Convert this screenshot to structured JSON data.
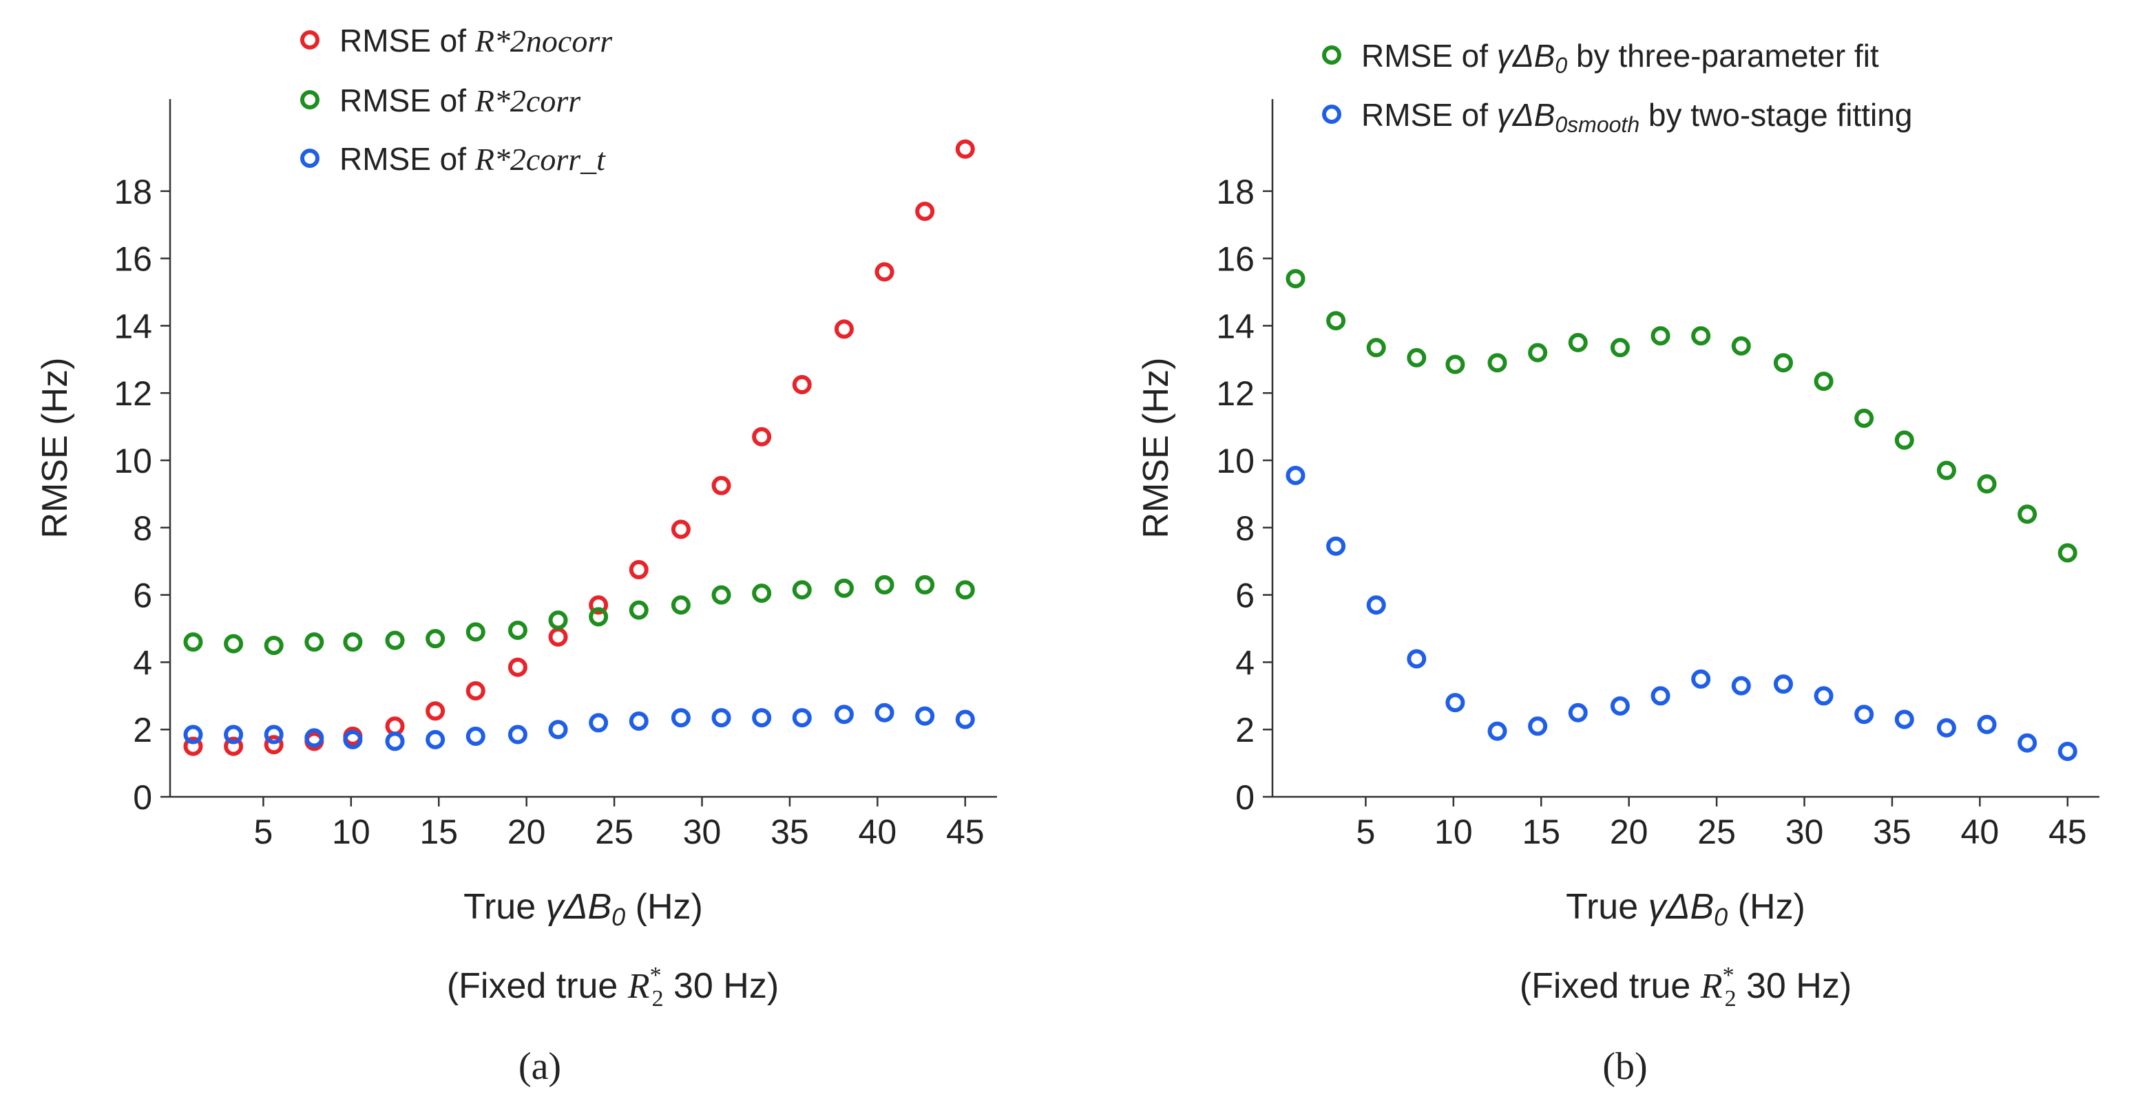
{
  "chart_data": [
    {
      "type": "scatter",
      "panel_label": "a",
      "panel_caption": "(a)",
      "x": [
        1,
        3.3,
        5.6,
        7.9,
        10.1,
        12.5,
        14.8,
        17.1,
        19.5,
        21.8,
        24.1,
        26.4,
        28.8,
        31.1,
        33.4,
        35.7,
        38.1,
        40.4,
        42.7,
        45
      ],
      "series": [
        {
          "name": "RMSE of R*2nocorr",
          "label_prefix": "RMSE of ",
          "label_symbol": "R*2nocorr",
          "color": "#e8242b",
          "values": [
            1.5,
            1.5,
            1.55,
            1.65,
            1.8,
            2.1,
            2.55,
            3.15,
            3.85,
            4.75,
            5.7,
            6.75,
            7.95,
            9.25,
            10.7,
            12.25,
            13.9,
            15.6,
            17.4,
            19.25
          ]
        },
        {
          "name": "RMSE of R*2corr",
          "label_prefix": "RMSE of ",
          "label_symbol": "R*2corr",
          "color": "#1e8f1e",
          "values": [
            4.6,
            4.55,
            4.5,
            4.6,
            4.6,
            4.65,
            4.7,
            4.9,
            4.95,
            5.25,
            5.35,
            5.55,
            5.7,
            6.0,
            6.05,
            6.15,
            6.2,
            6.3,
            6.3,
            6.15
          ]
        },
        {
          "name": "RMSE of R*2corr_t",
          "label_prefix": "RMSE of ",
          "label_symbol": "R*2corr_t",
          "color": "#1f5fe8",
          "values": [
            1.85,
            1.85,
            1.85,
            1.75,
            1.7,
            1.65,
            1.7,
            1.8,
            1.85,
            2.0,
            2.2,
            2.25,
            2.35,
            2.35,
            2.35,
            2.35,
            2.45,
            2.5,
            2.4,
            2.3
          ]
        }
      ],
      "xlabel": "True γΔB0 (Hz)",
      "xlabel_prefix": "True ",
      "xlabel_symbol": "γΔB",
      "xlabel_sub": "0",
      "xlabel_unit": " (Hz)",
      "subcaption": "(Fixed true R*2 30 Hz)",
      "subcaption_prefix": "(Fixed true ",
      "subcaption_symbol": "R",
      "subcaption_suffix": " 30 Hz)",
      "ylabel": "RMSE (Hz)",
      "xticks": [
        5,
        10,
        15,
        20,
        25,
        30,
        35,
        40,
        45
      ],
      "yticks": [
        0,
        2,
        4,
        6,
        8,
        10,
        12,
        14,
        16,
        18
      ],
      "xlim": [
        0,
        46.5
      ],
      "ylim": [
        0,
        20
      ],
      "legend_position": "top-center",
      "grid": false
    },
    {
      "type": "scatter",
      "panel_label": "b",
      "panel_caption": "(b)",
      "x": [
        1,
        3.3,
        5.6,
        7.9,
        10.1,
        12.5,
        14.8,
        17.1,
        19.5,
        21.8,
        24.1,
        26.4,
        28.8,
        31.1,
        33.4,
        35.7,
        38.1,
        40.4,
        42.7,
        45
      ],
      "series": [
        {
          "name": "RMSE of γΔB0 by three-parameter fit",
          "label_prefix": "RMSE of ",
          "label_symbol": "γΔB",
          "label_sub": "0",
          "label_suffix": " by three-parameter fit",
          "color": "#1e8f1e",
          "values": [
            15.4,
            14.15,
            13.35,
            13.05,
            12.85,
            12.9,
            13.2,
            13.5,
            13.35,
            13.7,
            13.7,
            13.4,
            12.9,
            12.35,
            11.25,
            10.6,
            9.7,
            9.3,
            8.4,
            7.25
          ]
        },
        {
          "name": "RMSE of γΔB0smooth by two-stage fitting",
          "label_prefix": "RMSE of ",
          "label_symbol": "γΔB",
          "label_sub": "0smooth",
          "label_suffix": " by two-stage fitting",
          "color": "#1f5fe8",
          "values": [
            9.55,
            7.45,
            5.7,
            4.1,
            2.8,
            1.95,
            2.1,
            2.5,
            2.7,
            3.0,
            3.5,
            3.3,
            3.35,
            3.0,
            2.45,
            2.3,
            2.05,
            2.15,
            1.6,
            1.35
          ]
        }
      ],
      "xlabel": "True γΔB0 (Hz)",
      "xlabel_prefix": "True ",
      "xlabel_symbol": "γΔB",
      "xlabel_sub": "0",
      "xlabel_unit": " (Hz)",
      "subcaption": "(Fixed true R*2 30 Hz)",
      "subcaption_prefix": "(Fixed true ",
      "subcaption_symbol": "R",
      "subcaption_suffix": " 30 Hz)",
      "ylabel": "RMSE (Hz)",
      "xticks": [
        5,
        10,
        15,
        20,
        25,
        30,
        35,
        40,
        45
      ],
      "yticks": [
        0,
        2,
        4,
        6,
        8,
        10,
        12,
        14,
        16,
        18
      ],
      "xlim": [
        0,
        46.5
      ],
      "ylim": [
        0,
        20
      ],
      "legend_position": "top-right",
      "grid": false
    }
  ]
}
